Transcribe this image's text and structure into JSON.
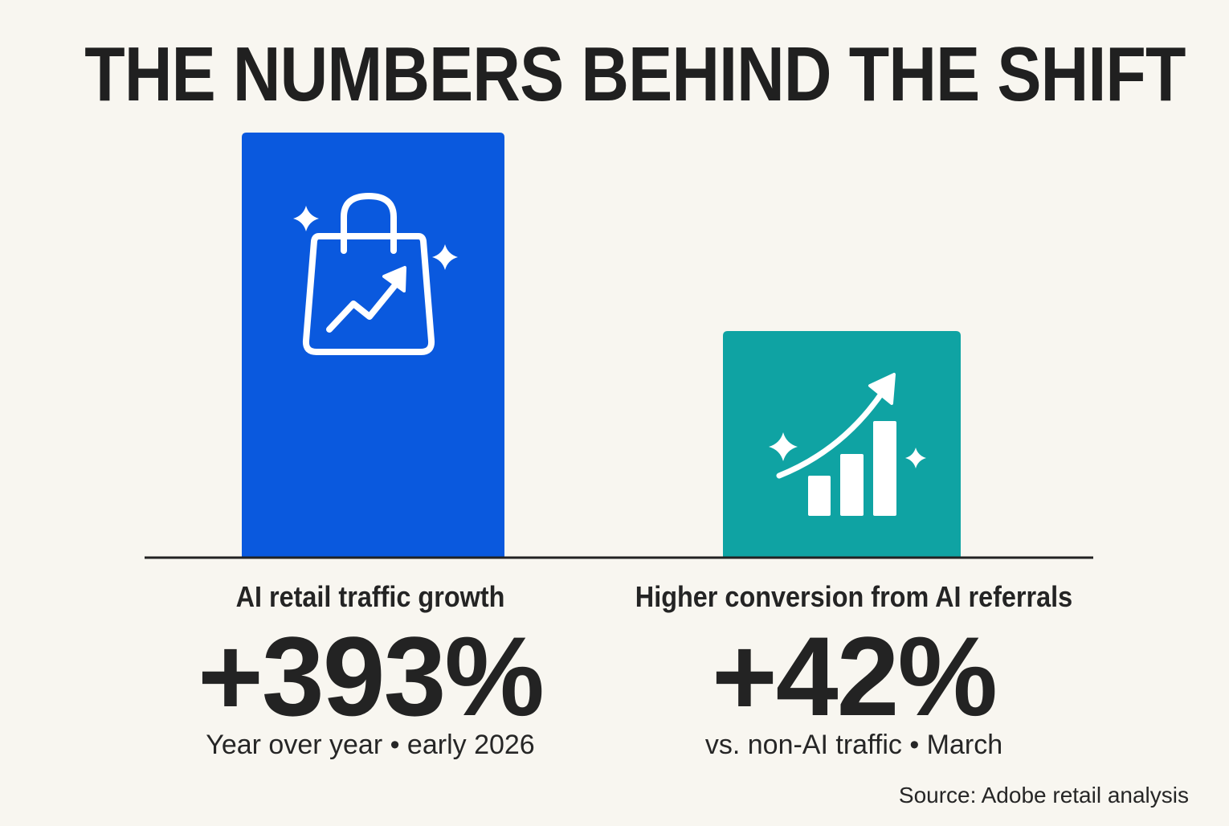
{
  "title": "THE NUMBERS BEHIND THE SHIFT",
  "colors": {
    "background": "#f8f6f0",
    "bar_1": "#0a59de",
    "bar_2": "#0fa3a3",
    "baseline": "#222222",
    "icon": "#ffffff"
  },
  "chart_data": {
    "type": "bar",
    "categories": [
      "AI retail traffic growth",
      "Higher conversion from AI referrals"
    ],
    "values": [
      393,
      42
    ],
    "value_labels": [
      "+393%",
      "+42%"
    ],
    "sublabels": [
      "Year over year • early 2026",
      "vs. non-AI traffic • March"
    ],
    "bar_icons": [
      "shopping-bag-trend-icon",
      "bar-chart-trend-icon"
    ],
    "title": "THE NUMBERS BEHIND THE SHIFT",
    "xlabel": "",
    "ylabel": "",
    "grid": false,
    "legend": "none"
  },
  "source": "Source: Adobe retail analysis"
}
